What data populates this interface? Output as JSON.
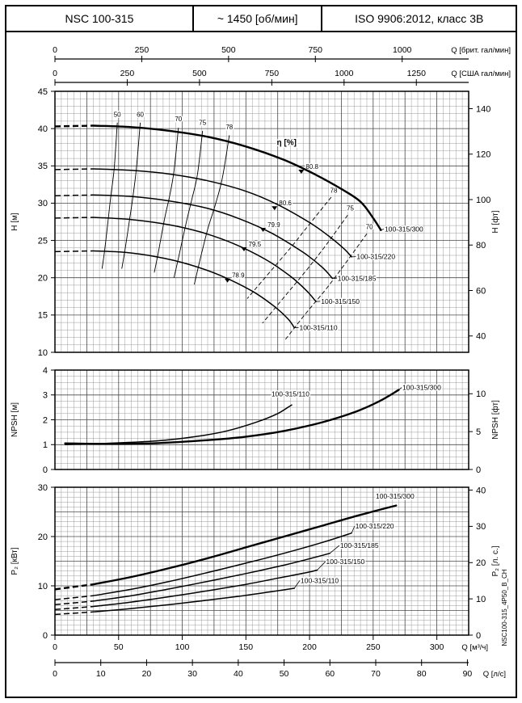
{
  "header": {
    "model": "NSC 100-315",
    "speed": "~ 1450 [об/мин]",
    "standard": "ISO 9906:2012, класс 3В"
  },
  "side_code": "NSC100-315_4P50_B_CH",
  "colors": {
    "ink": "#000000",
    "grid_minor": "#9b9b9b",
    "grid_major": "#4a4a4a",
    "bg": "#ffffff"
  },
  "x_axis": {
    "max_m3h": 325,
    "top": [
      {
        "label": "Q [брит. гал/мин]",
        "m3h_per_unit": 0.27276,
        "ticks": [
          0,
          250,
          500,
          750,
          1000
        ]
      },
      {
        "label": "Q [США гал/мин]",
        "m3h_per_unit": 0.22712,
        "ticks": [
          0,
          250,
          500,
          750,
          1000,
          1250
        ]
      }
    ],
    "bottom": [
      {
        "label": "Q [м³/ч]",
        "m3h_per_unit": 1,
        "ticks": [
          0,
          50,
          100,
          150,
          200,
          250,
          300
        ]
      },
      {
        "label": "Q [л/с]",
        "m3h_per_unit": 3.6,
        "ticks": [
          0,
          10,
          20,
          30,
          40,
          50,
          60,
          70,
          80,
          90
        ]
      }
    ]
  },
  "chart_data": [
    {
      "id": "head",
      "type": "line",
      "title": "Q-H performance curves",
      "ylabel_left": "H [м]",
      "ylabel_right": "H [фт]",
      "ylim": [
        10,
        45
      ],
      "yticks": [
        10,
        15,
        20,
        25,
        30,
        35,
        40,
        45
      ],
      "yticks_right": {
        "factor": 0.3048,
        "ticks": [
          40,
          60,
          80,
          100,
          120,
          140
        ]
      },
      "grid_minor_y": 1,
      "grid_major_y": 5,
      "eta_label": {
        "text": "η [%]",
        "at": [
          182,
          37.8
        ]
      },
      "series": [
        {
          "name": "100-315/300",
          "thick": true,
          "dash_start": true,
          "label_at": [
            259,
            26.2
          ],
          "points": [
            [
              0,
              40.3
            ],
            [
              30,
              40.4
            ],
            [
              60,
              40.2
            ],
            [
              90,
              39.7
            ],
            [
              120,
              38.9
            ],
            [
              150,
              37.6
            ],
            [
              180,
              35.8
            ],
            [
              205,
              33.8
            ],
            [
              225,
              31.9
            ],
            [
              240,
              30.2
            ],
            [
              250,
              28.0
            ],
            [
              256,
              26.4
            ]
          ]
        },
        {
          "name": "100-315/220",
          "thick": false,
          "dash_start": true,
          "label_at": [
            237,
            22.5
          ],
          "points": [
            [
              0,
              34.5
            ],
            [
              30,
              34.6
            ],
            [
              60,
              34.4
            ],
            [
              90,
              33.9
            ],
            [
              120,
              33.0
            ],
            [
              150,
              31.6
            ],
            [
              175,
              29.8
            ],
            [
              200,
              27.4
            ],
            [
              215,
              25.6
            ],
            [
              227,
              23.9
            ],
            [
              233,
              22.8
            ]
          ]
        },
        {
          "name": "100-315/185",
          "thick": false,
          "dash_start": true,
          "label_at": [
            222,
            19.6
          ],
          "points": [
            [
              0,
              31.0
            ],
            [
              30,
              31.1
            ],
            [
              60,
              30.9
            ],
            [
              90,
              30.3
            ],
            [
              120,
              29.3
            ],
            [
              145,
              27.9
            ],
            [
              170,
              26.0
            ],
            [
              195,
              23.4
            ],
            [
              210,
              21.4
            ],
            [
              218,
              19.9
            ]
          ]
        },
        {
          "name": "100-315/150",
          "thick": false,
          "dash_start": true,
          "label_at": [
            209,
            16.5
          ],
          "points": [
            [
              0,
              28.0
            ],
            [
              30,
              28.1
            ],
            [
              60,
              27.8
            ],
            [
              90,
              27.1
            ],
            [
              115,
              26.1
            ],
            [
              140,
              24.6
            ],
            [
              165,
              22.5
            ],
            [
              185,
              20.2
            ],
            [
              198,
              18.2
            ],
            [
              205,
              16.8
            ]
          ]
        },
        {
          "name": "100-315/110",
          "thick": false,
          "dash_start": true,
          "label_at": [
            192,
            13.0
          ],
          "points": [
            [
              0,
              23.5
            ],
            [
              30,
              23.6
            ],
            [
              55,
              23.4
            ],
            [
              80,
              22.8
            ],
            [
              105,
              21.8
            ],
            [
              130,
              20.3
            ],
            [
              155,
              18.2
            ],
            [
              172,
              16.2
            ],
            [
              183,
              14.5
            ],
            [
              188,
              13.3
            ]
          ]
        }
      ],
      "eta_lines": [
        {
          "label": "50",
          "label_at": [
            49,
            41.6
          ],
          "dashed": false,
          "points": [
            [
              49,
              40.8
            ],
            [
              46.5,
              34.6
            ],
            [
              44,
              31.1
            ],
            [
              42,
              28.1
            ],
            [
              39,
              23.6
            ],
            [
              37,
              21.2
            ]
          ]
        },
        {
          "label": "60",
          "label_at": [
            67,
            41.6
          ],
          "dashed": false,
          "points": [
            [
              67,
              40.8
            ],
            [
              64,
              34.7
            ],
            [
              61.5,
              31.2
            ],
            [
              59,
              28.2
            ],
            [
              55,
              23.7
            ],
            [
              52.5,
              21.2
            ]
          ]
        },
        {
          "label": "70",
          "label_at": [
            97,
            41.0
          ],
          "dashed": false,
          "points": [
            [
              97,
              40.1
            ],
            [
              93.5,
              34.3
            ],
            [
              90,
              30.9
            ],
            [
              86,
              27.8
            ],
            [
              81,
              23.2
            ],
            [
              78,
              20.7
            ]
          ]
        },
        {
          "label": "75",
          "label_at": [
            116,
            40.5
          ],
          "dashed": false,
          "points": [
            [
              116,
              39.7
            ],
            [
              112,
              33.9
            ],
            [
              107.5,
              30.5
            ],
            [
              103,
              27.3
            ],
            [
              97,
              22.6
            ],
            [
              93.5,
              20.0
            ]
          ]
        },
        {
          "label": "78",
          "label_at": [
            137,
            39.9
          ],
          "dashed": false,
          "points": [
            [
              137,
              39.1
            ],
            [
              131.5,
              33.4
            ],
            [
              126,
              29.8
            ],
            [
              120,
              26.5
            ],
            [
              113,
              21.7
            ],
            [
              109.5,
              19.1
            ]
          ]
        },
        {
          "label": "78",
          "label_at": [
            219,
            31.4
          ],
          "dashed": true,
          "points": [
            [
              217,
              30.8
            ],
            [
              200,
              27.2
            ],
            [
              186,
              24.2
            ],
            [
              170,
              21.0
            ],
            [
              151,
              17.2
            ]
          ]
        },
        {
          "label": "75",
          "label_at": [
            232,
            29.0
          ],
          "dashed": true,
          "points": [
            [
              230,
              28.4
            ],
            [
              213,
              24.4
            ],
            [
              198,
              21.1
            ],
            [
              182,
              17.8
            ],
            [
              163,
              13.9
            ]
          ]
        },
        {
          "label": "70",
          "label_at": [
            247,
            26.5
          ],
          "dashed": true,
          "points": [
            [
              245,
              25.9
            ],
            [
              228,
              21.9
            ],
            [
              213,
              18.5
            ],
            [
              197,
              15.2
            ],
            [
              181,
              11.7
            ]
          ]
        }
      ],
      "bep_labels": [
        {
          "label": "80.8",
          "at": [
            197,
            34.6
          ]
        },
        {
          "label": "80.6",
          "at": [
            176,
            29.7
          ]
        },
        {
          "label": "79.9",
          "at": [
            167,
            26.8
          ]
        },
        {
          "label": "79.5",
          "at": [
            152,
            24.2
          ]
        },
        {
          "label": "78.9",
          "at": [
            139,
            20.0
          ]
        }
      ]
    },
    {
      "id": "npsh",
      "type": "line",
      "title": "NPSH curves",
      "ylabel_left": "NPSH [м]",
      "ylabel_right": "NPSH [фт]",
      "ylim": [
        0,
        4
      ],
      "yticks": [
        0,
        1,
        2,
        3,
        4
      ],
      "yticks_right": {
        "factor": 0.3048,
        "ticks": [
          0,
          5,
          10
        ]
      },
      "grid_minor_y": 0.25,
      "grid_major_y": 1,
      "series": [
        {
          "name": "100-315/300",
          "thick": true,
          "dash_start": false,
          "label_at": [
            273,
            3.2
          ],
          "points": [
            [
              8,
              1.05
            ],
            [
              40,
              1.03
            ],
            [
              80,
              1.06
            ],
            [
              120,
              1.18
            ],
            [
              150,
              1.32
            ],
            [
              180,
              1.55
            ],
            [
              210,
              1.9
            ],
            [
              235,
              2.3
            ],
            [
              255,
              2.75
            ],
            [
              270,
              3.2
            ]
          ]
        },
        {
          "name": "100-315/110",
          "thick": false,
          "dash_start": false,
          "label_at": [
            170,
            2.95
          ],
          "points": [
            [
              8,
              1.0
            ],
            [
              40,
              1.05
            ],
            [
              80,
              1.15
            ],
            [
              110,
              1.32
            ],
            [
              135,
              1.55
            ],
            [
              158,
              1.9
            ],
            [
              175,
              2.25
            ],
            [
              186,
              2.6
            ]
          ]
        }
      ]
    },
    {
      "id": "power",
      "type": "line",
      "title": "P2 power curves",
      "ylabel_left": "P₂ [кВт]",
      "ylabel_right": "P₂ [л. с.]",
      "ylim": [
        0,
        30
      ],
      "yticks": [
        0,
        10,
        20,
        30
      ],
      "yticks_right": {
        "factor": 0.7355,
        "ticks": [
          0,
          10,
          20,
          30,
          40
        ]
      },
      "grid_minor_y": 1,
      "grid_major_y": 5,
      "series": [
        {
          "name": "100-315/300",
          "thick": true,
          "dash_start": true,
          "label_at": [
            252,
            27.7
          ],
          "points": [
            [
              0,
              9.3
            ],
            [
              30,
              10.3
            ],
            [
              60,
              11.8
            ],
            [
              90,
              13.6
            ],
            [
              120,
              15.6
            ],
            [
              150,
              17.8
            ],
            [
              180,
              20.0
            ],
            [
              210,
              22.2
            ],
            [
              240,
              24.4
            ],
            [
              268,
              26.3
            ]
          ]
        },
        {
          "name": "100-315/220",
          "thick": false,
          "dash_start": true,
          "label_at": [
            236,
            21.6
          ],
          "points": [
            [
              0,
              7.2
            ],
            [
              30,
              8.0
            ],
            [
              60,
              9.3
            ],
            [
              90,
              10.9
            ],
            [
              120,
              12.7
            ],
            [
              150,
              14.6
            ],
            [
              180,
              16.6
            ],
            [
              210,
              18.8
            ],
            [
              233,
              20.7
            ]
          ]
        },
        {
          "name": "100-315/185",
          "thick": false,
          "dash_start": true,
          "label_at": [
            224,
            17.7
          ],
          "points": [
            [
              0,
              6.2
            ],
            [
              30,
              6.9
            ],
            [
              60,
              8.0
            ],
            [
              90,
              9.4
            ],
            [
              120,
              10.9
            ],
            [
              150,
              12.5
            ],
            [
              180,
              14.2
            ],
            [
              203,
              15.7
            ],
            [
              216,
              16.6
            ]
          ]
        },
        {
          "name": "100-315/150",
          "thick": false,
          "dash_start": true,
          "label_at": [
            213,
            14.4
          ],
          "points": [
            [
              0,
              5.2
            ],
            [
              30,
              5.8
            ],
            [
              60,
              6.7
            ],
            [
              90,
              7.8
            ],
            [
              120,
              9.0
            ],
            [
              150,
              10.3
            ],
            [
              176,
              11.6
            ],
            [
              198,
              12.7
            ],
            [
              206,
              13.2
            ]
          ]
        },
        {
          "name": "100-315/110",
          "thick": false,
          "dash_start": true,
          "label_at": [
            193,
            10.6
          ],
          "points": [
            [
              0,
              4.2
            ],
            [
              30,
              4.7
            ],
            [
              60,
              5.4
            ],
            [
              90,
              6.2
            ],
            [
              120,
              7.1
            ],
            [
              148,
              8.0
            ],
            [
              170,
              8.8
            ],
            [
              188,
              9.5
            ]
          ]
        }
      ]
    }
  ]
}
